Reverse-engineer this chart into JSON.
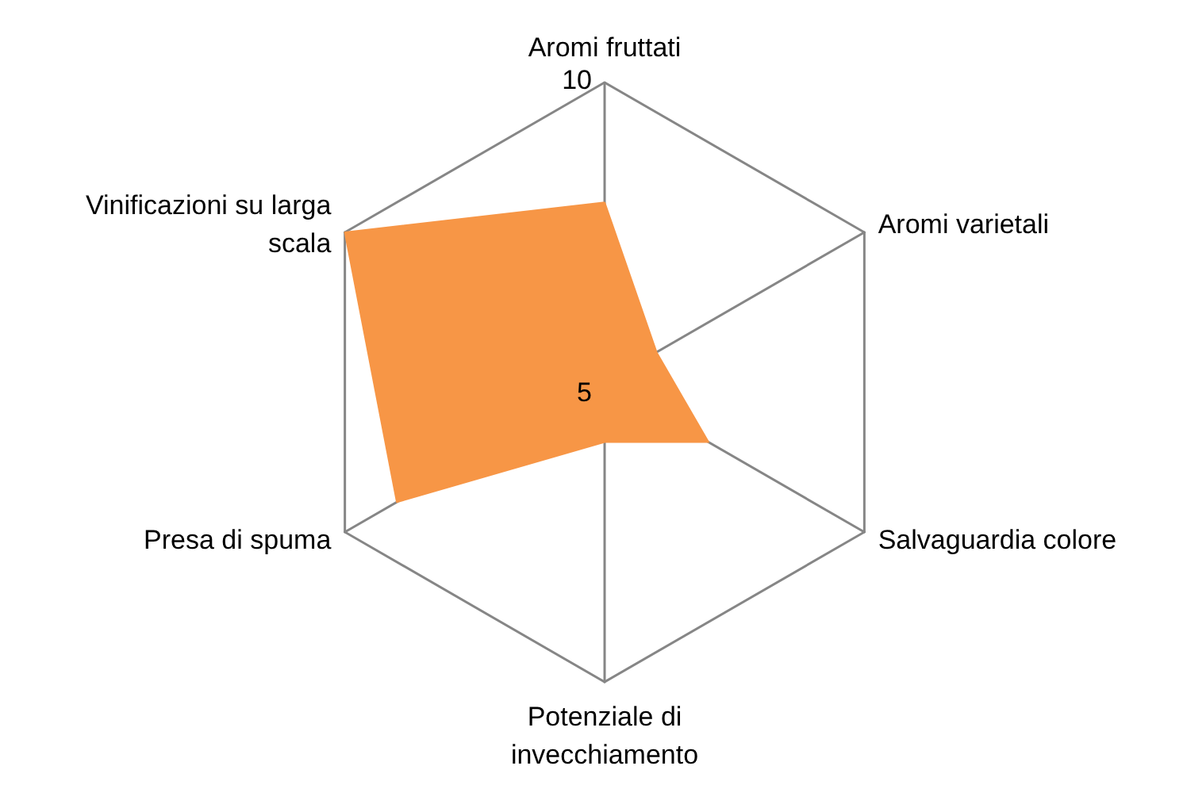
{
  "chart_data": {
    "type": "radar",
    "categories": [
      "Aromi fruttati",
      "Aromi varietali",
      "Salvaguardia colore",
      "Potenziale di invecchiamento",
      "Presa di spuma",
      "Vinificazioni su larga scala"
    ],
    "series": [
      {
        "color": "#f79646",
        "values": [
          8,
          6,
          7,
          6,
          9,
          10
        ]
      }
    ],
    "ylim": [
      5,
      10
    ],
    "yticks": [
      5,
      10
    ],
    "grid": true,
    "marker": "none"
  }
}
